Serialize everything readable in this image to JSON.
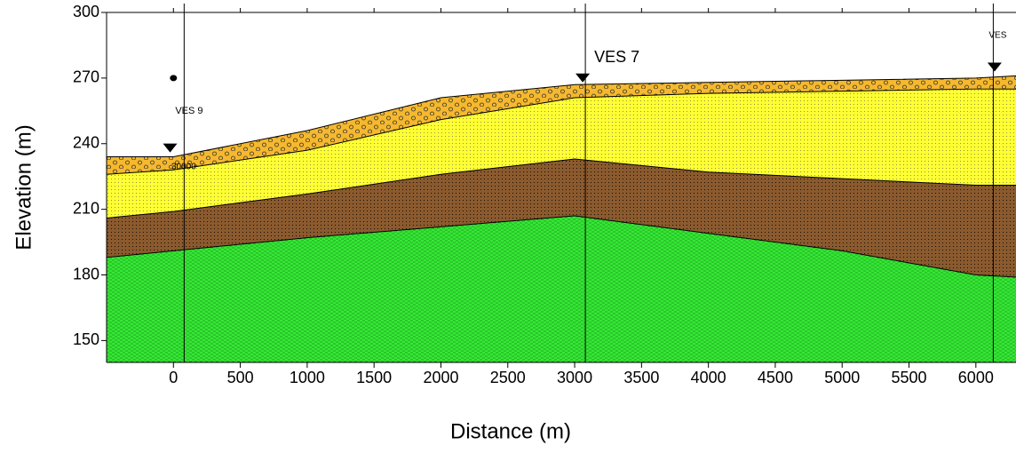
{
  "chart_data": {
    "type": "layered_section",
    "xlabel": "Distance (m)",
    "ylabel": "Elevation (m)",
    "x": [
      -500,
      0,
      1000,
      2000,
      3000,
      4000,
      5000,
      6000,
      6300
    ],
    "series": [
      {
        "color": "#f5b82e",
        "values": [
          234,
          234,
          246,
          261,
          267,
          268,
          269,
          270,
          271
        ]
      },
      {
        "color": "#ffff33",
        "values": [
          226,
          228,
          237,
          251,
          261,
          263,
          264,
          265,
          265
        ]
      },
      {
        "color": "#8a5a2e",
        "values": [
          206,
          209,
          217,
          226,
          233,
          227,
          224,
          221,
          221
        ]
      },
      {
        "color": "#33e833",
        "values": [
          188,
          191,
          197,
          202,
          207,
          199,
          191,
          180,
          179
        ]
      }
    ],
    "wells": [
      {
        "label": "VES 9",
        "line_x": 80,
        "marker_x": -25,
        "marker_y": 236
      },
      {
        "label": "VES 7",
        "line_x": 3080,
        "marker_x": 3060,
        "marker_y": 268
      },
      {
        "label": "VES",
        "line_x": 6130,
        "marker_x": 6140,
        "marker_y": 273
      }
    ],
    "points": [
      {
        "x": 0,
        "y": 270
      }
    ],
    "annotations": [
      "30000"
    ],
    "xlim": [
      -500,
      6300
    ],
    "ylim": [
      140,
      300
    ],
    "xticks": [
      0,
      500,
      1000,
      1500,
      2000,
      2500,
      3000,
      3500,
      4000,
      4500,
      5000,
      5500,
      6000
    ],
    "yticks": [
      150,
      180,
      210,
      240,
      270,
      300
    ]
  }
}
